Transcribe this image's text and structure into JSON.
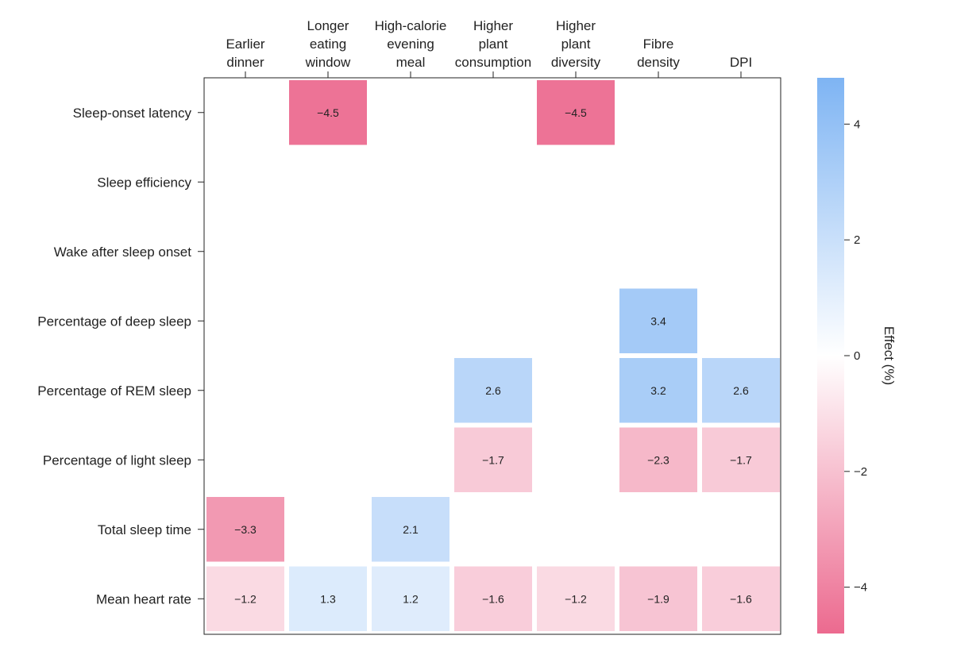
{
  "chart_data": {
    "type": "heatmap",
    "columns": [
      {
        "label": [
          "Earlier",
          "dinner"
        ]
      },
      {
        "label": [
          "Longer",
          "eating",
          "window"
        ]
      },
      {
        "label": [
          "High-calorie",
          "evening",
          "meal"
        ]
      },
      {
        "label": [
          "Higher",
          "plant",
          "consumption"
        ]
      },
      {
        "label": [
          "Higher",
          "plant",
          "diversity"
        ]
      },
      {
        "label": [
          "Fibre",
          "density"
        ]
      },
      {
        "label": [
          "DPI"
        ]
      }
    ],
    "rows": [
      "Sleep-onset latency",
      "Sleep efficiency",
      "Wake after sleep onset",
      "Percentage of deep sleep",
      "Percentage of REM sleep",
      "Percentage of light sleep",
      "Total sleep time",
      "Mean heart rate"
    ],
    "cells": [
      {
        "row": 0,
        "col": 1,
        "value": -4.5,
        "label": "−4.5"
      },
      {
        "row": 0,
        "col": 4,
        "value": -4.5,
        "label": "−4.5"
      },
      {
        "row": 3,
        "col": 5,
        "value": 3.4,
        "label": "3.4"
      },
      {
        "row": 4,
        "col": 3,
        "value": 2.6,
        "label": "2.6"
      },
      {
        "row": 4,
        "col": 5,
        "value": 3.2,
        "label": "3.2"
      },
      {
        "row": 4,
        "col": 6,
        "value": 2.6,
        "label": "2.6"
      },
      {
        "row": 5,
        "col": 3,
        "value": -1.7,
        "label": "−1.7"
      },
      {
        "row": 5,
        "col": 5,
        "value": -2.3,
        "label": "−2.3"
      },
      {
        "row": 5,
        "col": 6,
        "value": -1.7,
        "label": "−1.7"
      },
      {
        "row": 6,
        "col": 0,
        "value": -3.3,
        "label": "−3.3"
      },
      {
        "row": 6,
        "col": 2,
        "value": 2.1,
        "label": "2.1"
      },
      {
        "row": 7,
        "col": 0,
        "value": -1.2,
        "label": "−1.2"
      },
      {
        "row": 7,
        "col": 1,
        "value": 1.3,
        "label": "1.3"
      },
      {
        "row": 7,
        "col": 2,
        "value": 1.2,
        "label": "1.2"
      },
      {
        "row": 7,
        "col": 3,
        "value": -1.6,
        "label": "−1.6"
      },
      {
        "row": 7,
        "col": 4,
        "value": -1.2,
        "label": "−1.2"
      },
      {
        "row": 7,
        "col": 5,
        "value": -1.9,
        "label": "−1.9"
      },
      {
        "row": 7,
        "col": 6,
        "value": -1.6,
        "label": "−1.6"
      }
    ],
    "colorbar": {
      "title": "Effect (%)",
      "range": [
        -4.8,
        4.8
      ],
      "ticks": [
        {
          "value": 4,
          "label": "4"
        },
        {
          "value": 2,
          "label": "2"
        },
        {
          "value": 0,
          "label": "0"
        },
        {
          "value": -2,
          "label": "−2"
        },
        {
          "value": -4,
          "label": "−4"
        }
      ],
      "colors": {
        "positive": "#7eb4f3",
        "zero": "#ffffff",
        "negative": "#ec6a8f"
      }
    }
  }
}
